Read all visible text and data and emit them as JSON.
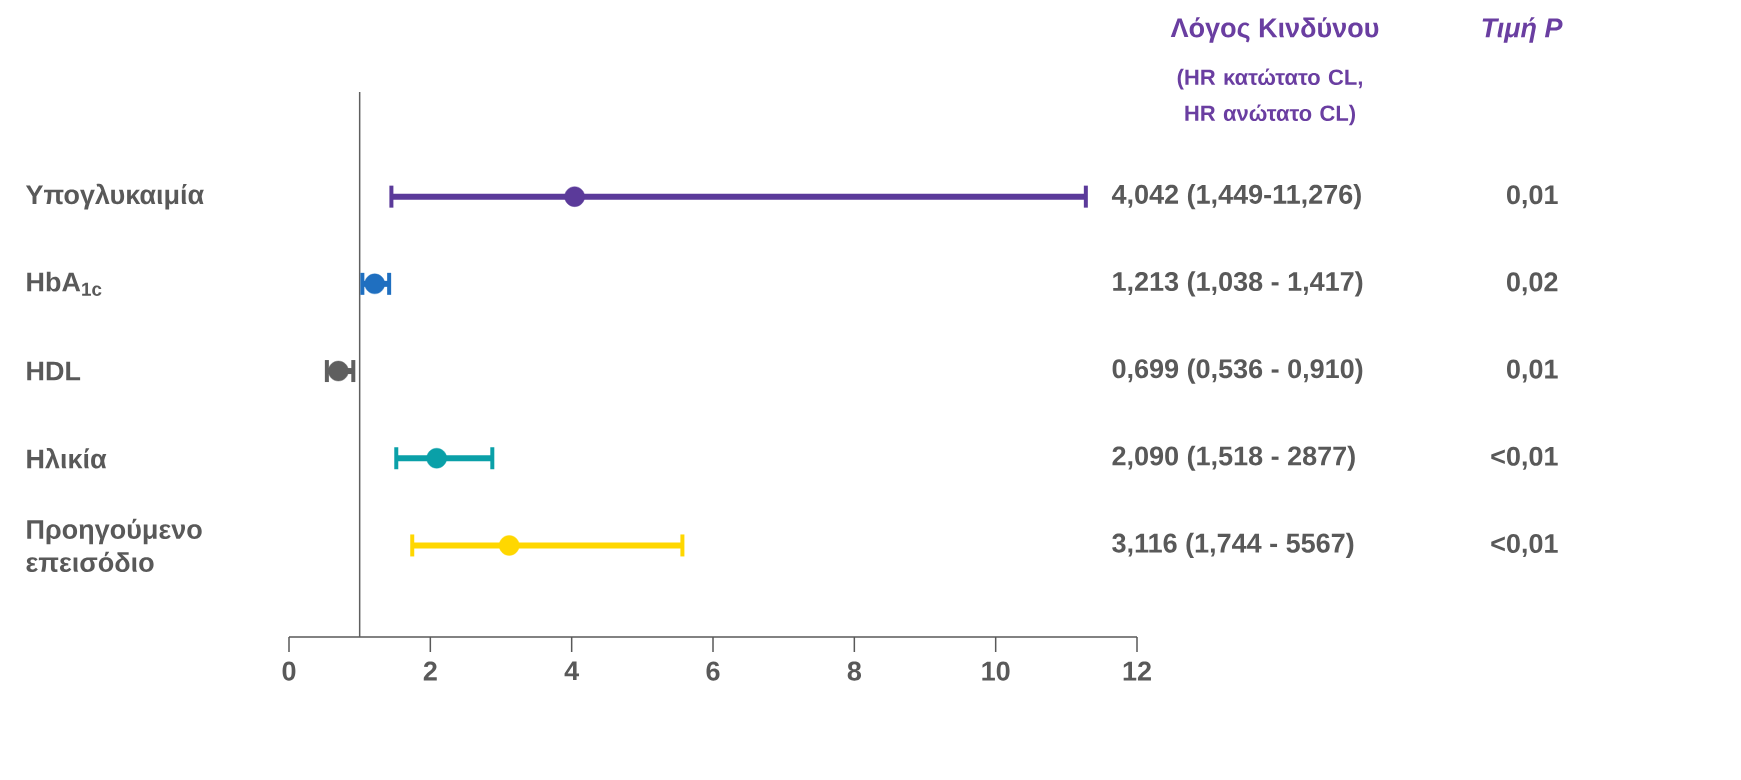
{
  "chart_data": {
    "type": "scatter",
    "orientation": "horizontal",
    "title": "Λόγος Κινδύνου",
    "subtitle": "(HR κατώτατο CL, HR ανώτατο CL)",
    "categories": [
      "Υπογλυκαιμία",
      "HbA$_{1c}$",
      "HDL",
      "Ηλικία",
      "Προηγούμενο επεισόδιο"
    ],
    "values": [
      4.042,
      1.213,
      0.699,
      2.09,
      3.116
    ],
    "errors": [
      [
        1.449,
        11.276
      ],
      [
        1.038,
        1.417
      ],
      [
        0.536,
        0.91
      ],
      [
        1.518,
        2.877
      ],
      [
        1.744,
        5.567
      ]
    ],
    "colors": [
      "#5b3a9a",
      "#1f6fc0",
      "#5f5f5f",
      "#0aa0a8",
      "#ffd700"
    ],
    "value_labels": [
      "4,042 (1,449-11,276)",
      "1,213 (1,038 - 1,417)",
      "0,699 (0,536 - 0,910)",
      "2,090 (1,518 - 2877)",
      "3,116 (1,744 - 5567)"
    ],
    "annotations": [
      "Τιμή P",
      "0,01",
      "0,02",
      "0,01",
      "<0,01",
      "<0,01"
    ],
    "xlim": [
      0,
      12
    ],
    "xticks": [
      0,
      2,
      4,
      6,
      8,
      10,
      12
    ],
    "ref_lines": [
      {
        "axis": "x",
        "value": 1,
        "color": "#5f5f5f"
      }
    ],
    "marker": "circle"
  }
}
